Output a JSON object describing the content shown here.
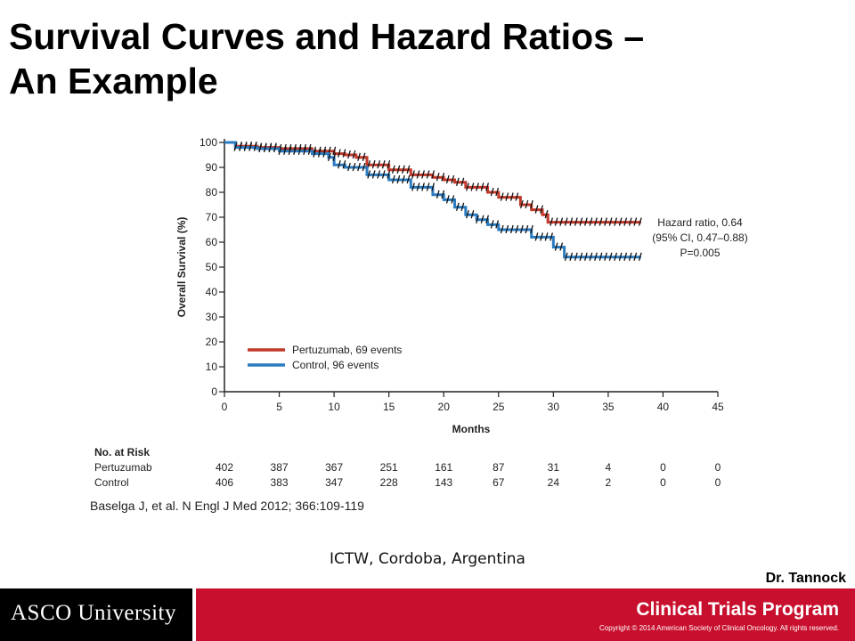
{
  "slide": {
    "title_line1": "Survival Curves and Hazard Ratios –",
    "title_line2": "An Example",
    "citation": "Baselga J, et al. N Engl J Med 2012; 366:109-119",
    "venue": "ICTW, Cordoba, Argentina",
    "author": "Dr. Tannock"
  },
  "footer": {
    "logo_text": "ASCO University",
    "program_label": "Clinical Trials Program",
    "copyright": "Copyright © 2014 American Society of Clinical Oncology. All rights reserved.",
    "colors": {
      "left_bg": "#000000",
      "right_bg": "#c8102e"
    }
  },
  "chart_data": {
    "type": "line",
    "xlabel": "Months",
    "ylabel": "Overall Survival (%)",
    "xlim": [
      0,
      45
    ],
    "ylim": [
      0,
      100
    ],
    "x_ticks": [
      0,
      5,
      10,
      15,
      20,
      25,
      30,
      35,
      40,
      45
    ],
    "y_ticks": [
      0,
      10,
      20,
      30,
      40,
      50,
      60,
      70,
      80,
      90,
      100
    ],
    "series": [
      {
        "name": "Pertuzumab, 69 events",
        "color": "#c0392b",
        "points": [
          [
            0,
            100
          ],
          [
            1,
            98.5
          ],
          [
            3,
            98
          ],
          [
            5,
            97.5
          ],
          [
            8,
            96.5
          ],
          [
            10,
            95.5
          ],
          [
            11,
            95
          ],
          [
            12,
            94
          ],
          [
            13,
            91
          ],
          [
            15,
            89
          ],
          [
            17,
            87
          ],
          [
            19,
            86
          ],
          [
            20,
            85
          ],
          [
            21,
            84
          ],
          [
            22,
            82
          ],
          [
            24,
            80
          ],
          [
            25,
            78
          ],
          [
            27,
            75
          ],
          [
            28,
            73
          ],
          [
            29,
            71
          ],
          [
            29.5,
            68
          ],
          [
            32,
            68
          ],
          [
            35,
            68
          ],
          [
            38,
            68
          ]
        ]
      },
      {
        "name": "Control, 96 events",
        "color": "#2b7bc0",
        "points": [
          [
            0,
            100
          ],
          [
            1,
            98
          ],
          [
            3,
            97.5
          ],
          [
            5,
            96.5
          ],
          [
            8,
            95.5
          ],
          [
            9.5,
            94
          ],
          [
            10,
            91
          ],
          [
            11,
            90
          ],
          [
            13,
            87
          ],
          [
            15,
            85
          ],
          [
            17,
            82
          ],
          [
            19,
            79
          ],
          [
            20,
            77
          ],
          [
            21,
            74
          ],
          [
            22,
            71
          ],
          [
            23,
            69
          ],
          [
            24,
            67
          ],
          [
            25,
            65
          ],
          [
            27,
            65
          ],
          [
            28,
            62
          ],
          [
            29,
            62
          ],
          [
            30,
            58
          ],
          [
            31,
            54
          ],
          [
            33,
            54
          ],
          [
            36,
            54
          ],
          [
            38,
            54
          ]
        ]
      }
    ],
    "annotation": [
      "Hazard ratio, 0.64",
      "(95% CI, 0.47–0.88)",
      "P=0.005"
    ],
    "risk_table": {
      "header": "No. at Risk",
      "rows": [
        {
          "label": "Pertuzumab",
          "values": [
            "402",
            "387",
            "367",
            "251",
            "161",
            "87",
            "31",
            "4",
            "0",
            "0"
          ]
        },
        {
          "label": "Control",
          "values": [
            "406",
            "383",
            "347",
            "228",
            "143",
            "67",
            "24",
            "2",
            "0",
            "0"
          ]
        }
      ]
    }
  }
}
